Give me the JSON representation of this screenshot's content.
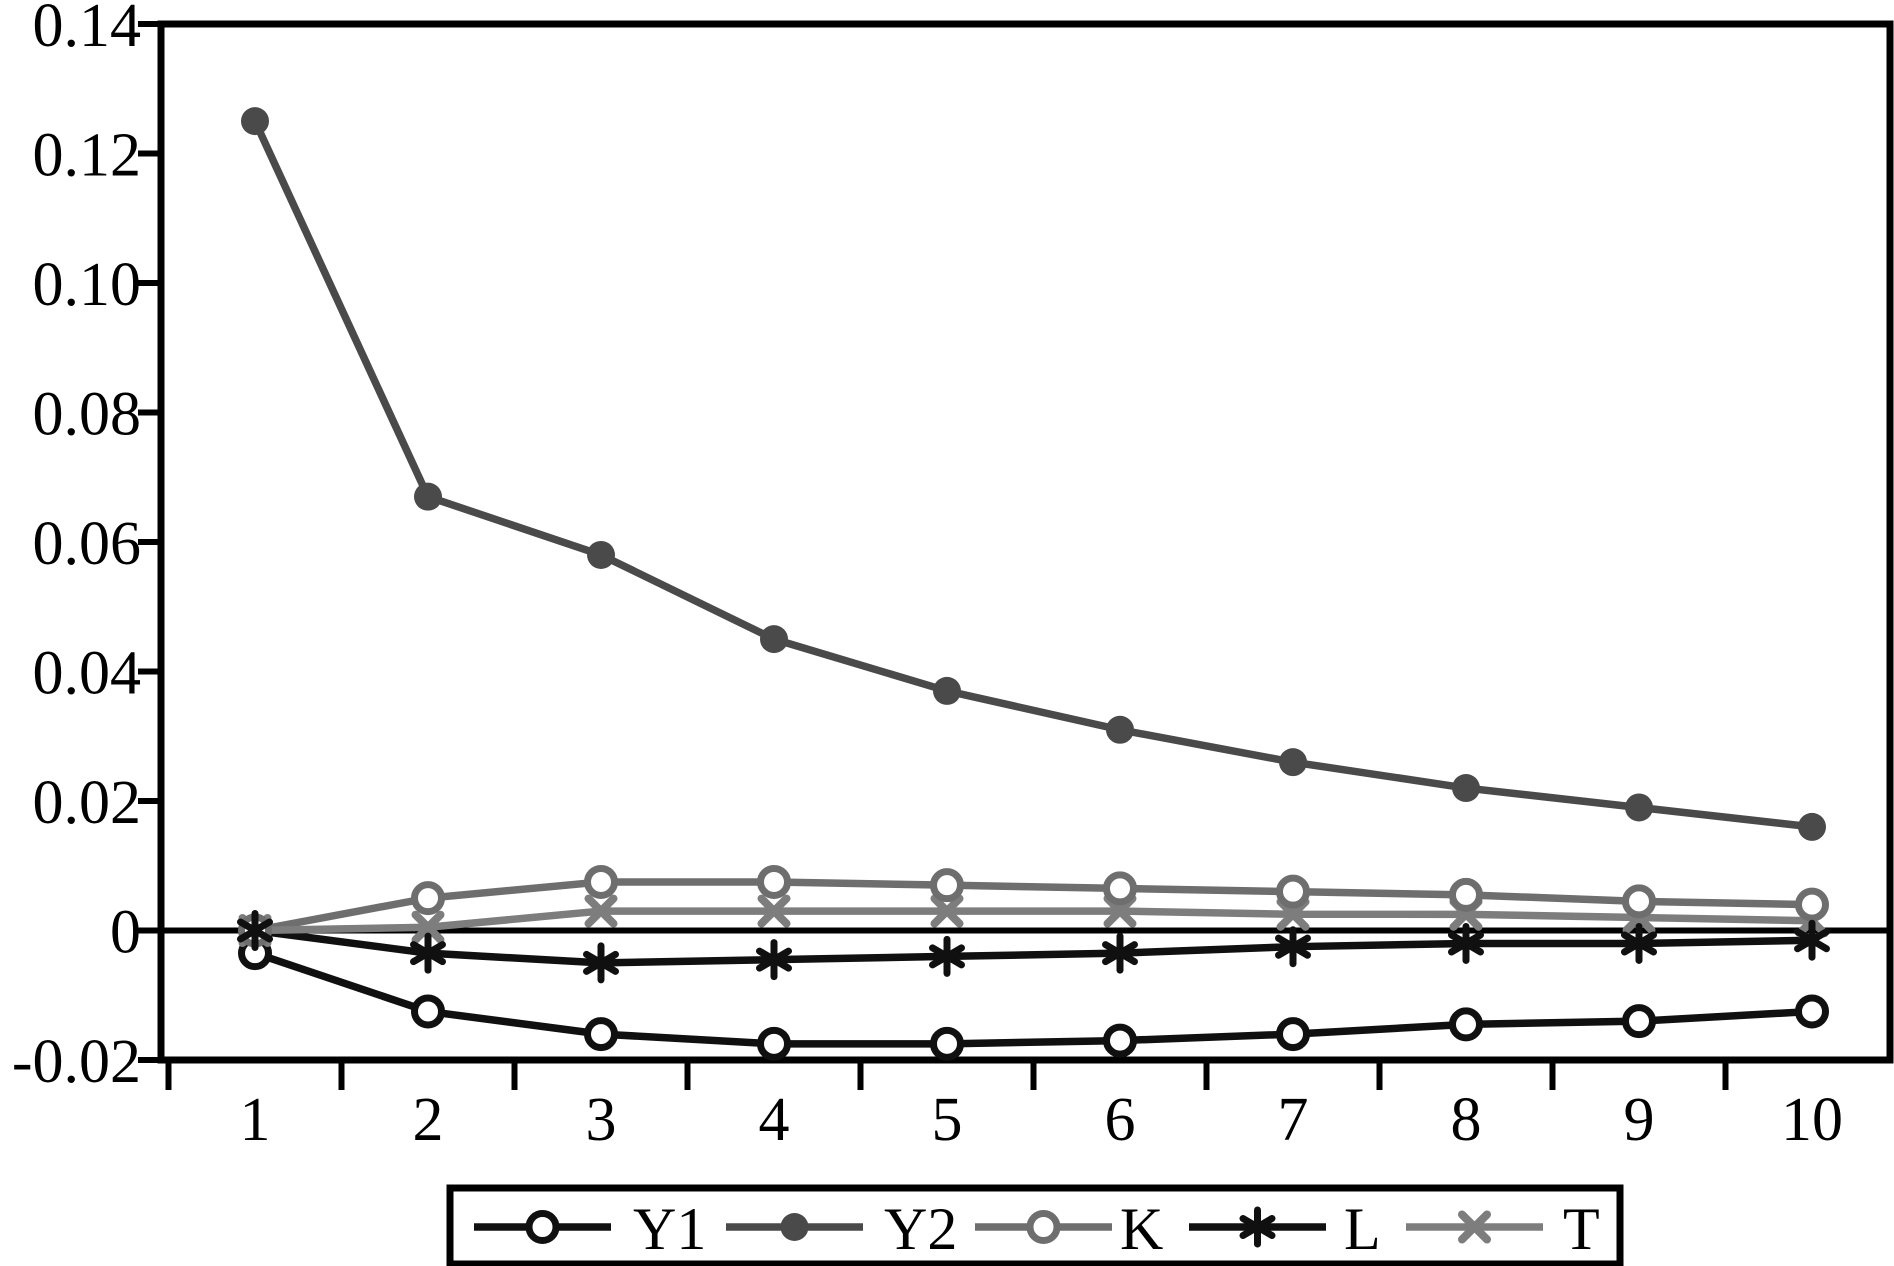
{
  "figure": {
    "background": "#ffffff",
    "frame_color": "#000000",
    "text_color": "#000000"
  },
  "chart_data": {
    "type": "line",
    "title": "",
    "xlabel": "",
    "ylabel": "",
    "x": [
      1,
      2,
      3,
      4,
      5,
      6,
      7,
      8,
      9,
      10
    ],
    "xtick_labels": [
      "1",
      "2",
      "3",
      "4",
      "5",
      "6",
      "7",
      "8",
      "9",
      "10"
    ],
    "ylim": [
      -0.02,
      0.14
    ],
    "ytick_values": [
      0.14,
      0.12,
      0.1,
      0.08,
      0.06,
      0.04,
      0.02,
      0,
      -0.02
    ],
    "ytick_labels": [
      "0.14",
      "0.12",
      "0.10",
      "0.08",
      "0.06",
      "0.04",
      "0.02",
      "0",
      "-0.02"
    ],
    "grid": false,
    "zero_line": true,
    "legend_position": "bottom",
    "series": [
      {
        "name": "Y1",
        "color": "#101010",
        "marker": "open-circle",
        "values": [
          -0.0035,
          -0.0125,
          -0.016,
          -0.0175,
          -0.0175,
          -0.017,
          -0.016,
          -0.0145,
          -0.014,
          -0.0125
        ]
      },
      {
        "name": "Y2",
        "color": "#4a4a4a",
        "marker": "filled-circle",
        "values": [
          0.125,
          0.067,
          0.058,
          0.045,
          0.037,
          0.031,
          0.026,
          0.022,
          0.019,
          0.016
        ]
      },
      {
        "name": "K",
        "color": "#6e6e6e",
        "marker": "open-circle",
        "values": [
          0.0,
          0.005,
          0.0075,
          0.0075,
          0.007,
          0.0065,
          0.006,
          0.0055,
          0.0045,
          0.004
        ]
      },
      {
        "name": "L",
        "color": "#101010",
        "marker": "asterisk",
        "values": [
          0.0,
          -0.0035,
          -0.005,
          -0.0045,
          -0.004,
          -0.0035,
          -0.0025,
          -0.002,
          -0.002,
          -0.0015
        ]
      },
      {
        "name": "T",
        "color": "#7d7d7d",
        "marker": "x",
        "values": [
          0.0,
          0.0005,
          0.003,
          0.003,
          0.003,
          0.003,
          0.0025,
          0.0025,
          0.002,
          0.0015
        ]
      }
    ]
  }
}
